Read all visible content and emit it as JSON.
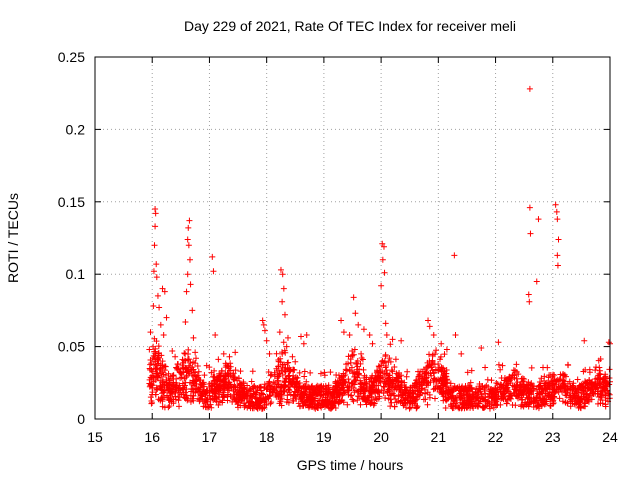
{
  "chart_data": {
    "type": "scatter",
    "title": "Day 229 of 2021, Rate Of TEC Index for receiver meli",
    "xlabel": "GPS time / hours",
    "ylabel": "ROTI / TECUs",
    "xlim": [
      15,
      24
    ],
    "ylim": [
      0,
      0.25
    ],
    "x_ticks": [
      15,
      16,
      17,
      18,
      19,
      20,
      21,
      22,
      23,
      24
    ],
    "x_tick_labels": [
      "15",
      "16",
      "17",
      "18",
      "19",
      "20",
      "21",
      "22",
      "23",
      "24"
    ],
    "y_ticks": [
      0,
      0.05,
      0.1,
      0.15,
      0.2,
      0.25
    ],
    "y_tick_labels": [
      "0",
      "0.05",
      "0.1",
      "0.15",
      "0.2",
      "0.25"
    ],
    "grid": true,
    "marker": "+",
    "series": [
      {
        "name": "ROTI",
        "color": "#ff0000",
        "points": [
          [
            16.05,
            0.145
          ],
          [
            16.06,
            0.142
          ],
          [
            16.05,
            0.133
          ],
          [
            16.04,
            0.12
          ],
          [
            16.07,
            0.107
          ],
          [
            16.03,
            0.102
          ],
          [
            16.08,
            0.098
          ],
          [
            16.02,
            0.078
          ],
          [
            15.97,
            0.06
          ],
          [
            15.95,
            0.048
          ],
          [
            16.1,
            0.085
          ],
          [
            16.12,
            0.077
          ],
          [
            16.15,
            0.065
          ],
          [
            16.18,
            0.09
          ],
          [
            16.22,
            0.088
          ],
          [
            16.25,
            0.07
          ],
          [
            16.2,
            0.058
          ],
          [
            16.35,
            0.047
          ],
          [
            16.4,
            0.043
          ],
          [
            16.65,
            0.137
          ],
          [
            16.63,
            0.132
          ],
          [
            16.62,
            0.124
          ],
          [
            16.64,
            0.12
          ],
          [
            16.66,
            0.11
          ],
          [
            16.62,
            0.1
          ],
          [
            16.67,
            0.093
          ],
          [
            16.6,
            0.088
          ],
          [
            16.7,
            0.075
          ],
          [
            16.58,
            0.067
          ],
          [
            16.72,
            0.056
          ],
          [
            16.75,
            0.046
          ],
          [
            17.05,
            0.112
          ],
          [
            17.07,
            0.102
          ],
          [
            17.1,
            0.058
          ],
          [
            17.25,
            0.045
          ],
          [
            17.35,
            0.043
          ],
          [
            17.45,
            0.046
          ],
          [
            17.93,
            0.068
          ],
          [
            17.95,
            0.065
          ],
          [
            17.97,
            0.061
          ],
          [
            18.0,
            0.054
          ],
          [
            18.05,
            0.045
          ],
          [
            18.25,
            0.103
          ],
          [
            18.28,
            0.1
          ],
          [
            18.3,
            0.09
          ],
          [
            18.27,
            0.081
          ],
          [
            18.32,
            0.072
          ],
          [
            18.23,
            0.06
          ],
          [
            18.35,
            0.05
          ],
          [
            18.45,
            0.043
          ],
          [
            18.6,
            0.057
          ],
          [
            18.65,
            0.052
          ],
          [
            18.7,
            0.058
          ],
          [
            19.3,
            0.068
          ],
          [
            19.35,
            0.06
          ],
          [
            19.45,
            0.058
          ],
          [
            19.52,
            0.084
          ],
          [
            19.55,
            0.073
          ],
          [
            19.6,
            0.065
          ],
          [
            19.65,
            0.045
          ],
          [
            19.7,
            0.062
          ],
          [
            19.8,
            0.058
          ],
          [
            19.85,
            0.052
          ],
          [
            20.02,
            0.121
          ],
          [
            20.05,
            0.119
          ],
          [
            20.03,
            0.11
          ],
          [
            20.06,
            0.101
          ],
          [
            20.0,
            0.092
          ],
          [
            20.04,
            0.078
          ],
          [
            20.08,
            0.066
          ],
          [
            20.1,
            0.058
          ],
          [
            20.2,
            0.055
          ],
          [
            20.35,
            0.054
          ],
          [
            20.82,
            0.068
          ],
          [
            20.85,
            0.064
          ],
          [
            20.92,
            0.058
          ],
          [
            21.05,
            0.052
          ],
          [
            21.15,
            0.048
          ],
          [
            21.28,
            0.113
          ],
          [
            21.3,
            0.058
          ],
          [
            21.4,
            0.045
          ],
          [
            21.75,
            0.049
          ],
          [
            22.05,
            0.053
          ],
          [
            22.6,
            0.228
          ],
          [
            22.6,
            0.146
          ],
          [
            22.61,
            0.128
          ],
          [
            22.58,
            0.086
          ],
          [
            22.59,
            0.081
          ],
          [
            22.75,
            0.138
          ],
          [
            22.72,
            0.095
          ],
          [
            23.05,
            0.148
          ],
          [
            23.07,
            0.143
          ],
          [
            23.08,
            0.138
          ],
          [
            23.1,
            0.124
          ],
          [
            23.08,
            0.113
          ],
          [
            23.09,
            0.106
          ],
          [
            23.55,
            0.054
          ],
          [
            23.98,
            0.053
          ],
          [
            24.0,
            0.052
          ]
        ]
      }
    ]
  }
}
